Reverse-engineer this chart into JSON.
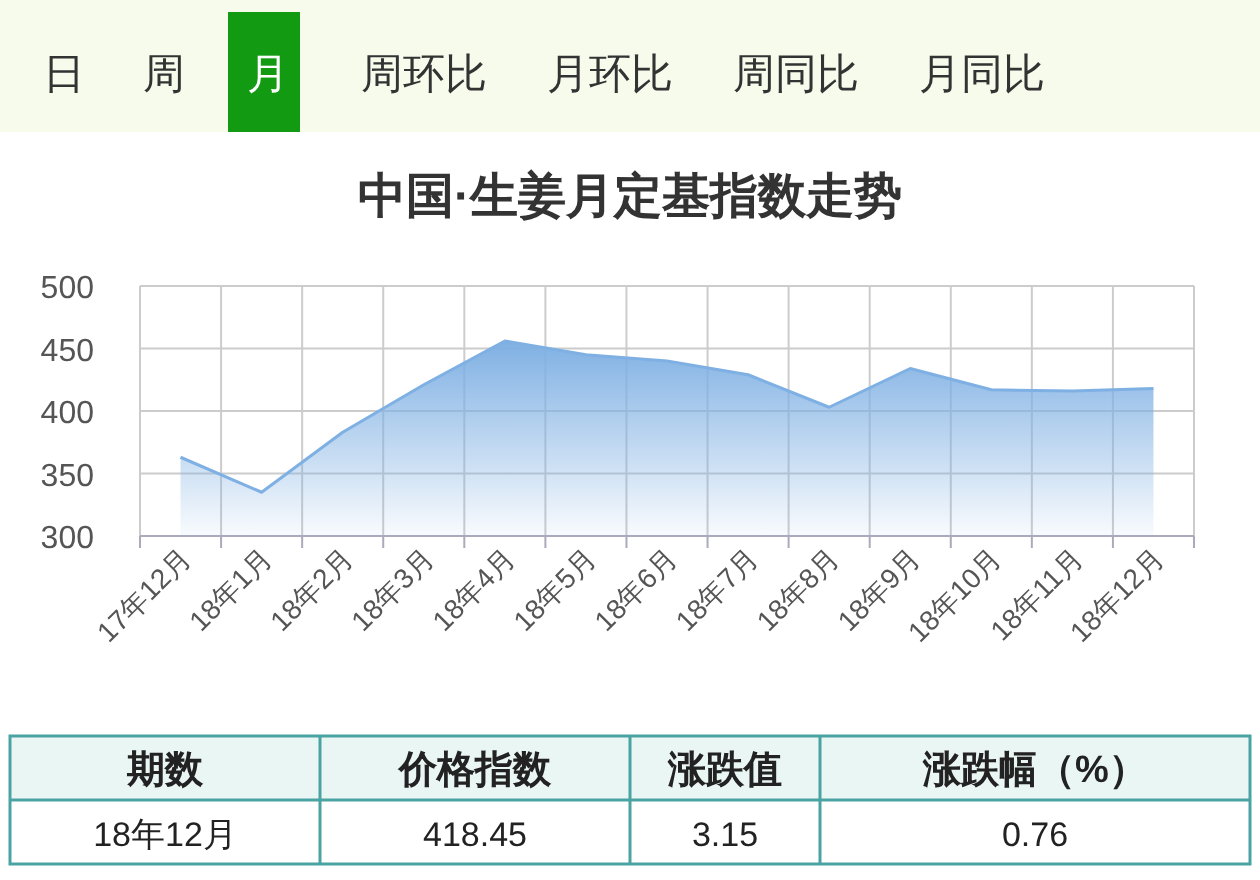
{
  "chart_data": {
    "type": "area",
    "title": "中国·生姜月定基指数走势",
    "categories": [
      "17年12月",
      "18年1月",
      "18年2月",
      "18年3月",
      "18年4月",
      "18年5月",
      "18年6月",
      "18年7月",
      "18年8月",
      "18年9月",
      "18年10月",
      "18年11月",
      "18年12月"
    ],
    "series": [
      {
        "color": "#7fb0e3",
        "values": [
          363,
          335,
          383,
          421,
          456,
          445,
          440,
          429,
          403,
          434,
          417,
          416,
          418
        ]
      }
    ],
    "ylim": [
      300,
      500
    ],
    "yticks": [
      300,
      350,
      400,
      450,
      500
    ],
    "grid": true,
    "annotations": [
      "日",
      "周",
      "月",
      "周环比",
      "月环比",
      "周同比",
      "月同比",
      "期数",
      "价格指数",
      "涨跌值",
      "涨跌幅（%）",
      "18年12月",
      "418.45",
      "3.15",
      "0.76"
    ]
  }
}
